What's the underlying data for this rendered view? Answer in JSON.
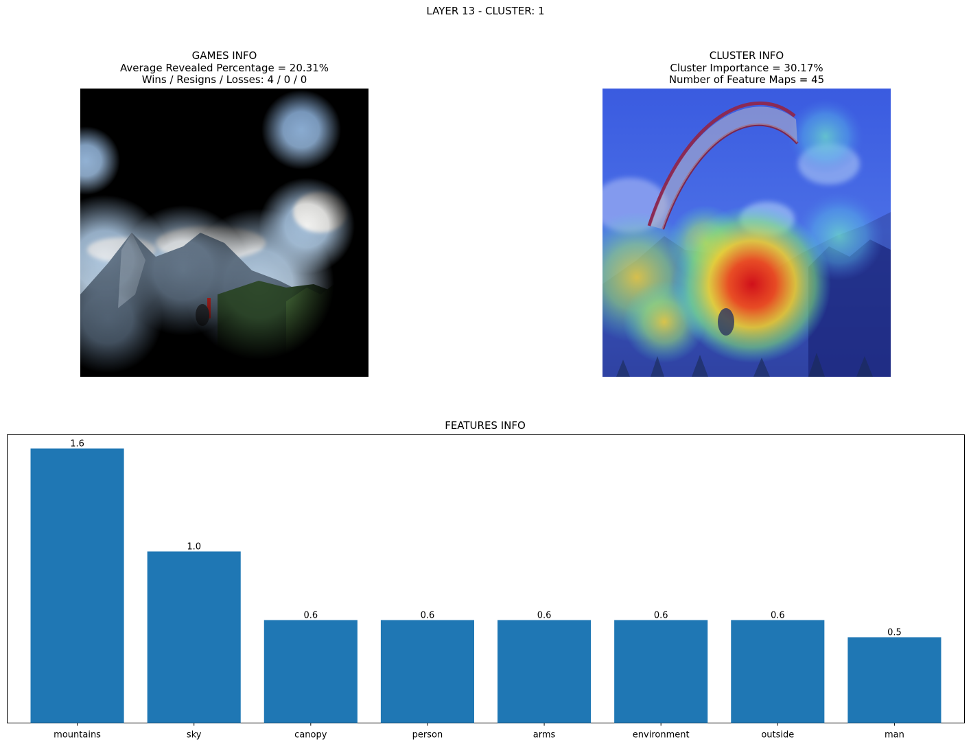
{
  "suptitle": "LAYER 13 - CLUSTER: 1",
  "games_info": {
    "title": "GAMES INFO",
    "line1": "Average Revealed Percentage = 20.31%",
    "line2": "Wins / Resigns / Losses: 4 / 0 / 0"
  },
  "cluster_info": {
    "title": "CLUSTER INFO",
    "line1": "Cluster Importance = 30.17%",
    "line2": "Number of Feature Maps = 45"
  },
  "colors": {
    "bar": "#1f77b4",
    "axis": "#000000",
    "masked_background": "#000000"
  },
  "chart_data": {
    "type": "bar",
    "title": "FEATURES INFO",
    "categories": [
      "mountains",
      "sky",
      "canopy",
      "person",
      "arms",
      "environment",
      "outside",
      "man"
    ],
    "values": [
      1.6,
      1.0,
      0.6,
      0.6,
      0.6,
      0.6,
      0.6,
      0.5
    ],
    "value_labels": [
      "1.6",
      "1.0",
      "0.6",
      "0.6",
      "0.6",
      "0.6",
      "0.6",
      "0.5"
    ],
    "ylim": [
      0,
      1.68
    ],
    "yticks_visible": false,
    "grid": false,
    "legend": "none"
  }
}
